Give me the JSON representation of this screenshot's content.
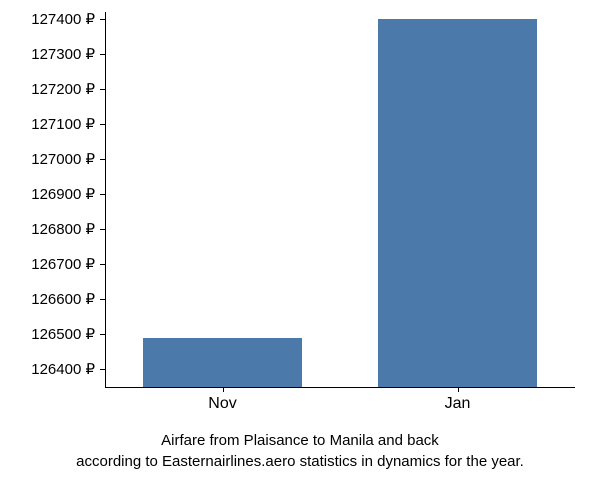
{
  "chart": {
    "type": "bar",
    "currency_symbol": "₽",
    "categories": [
      "Nov",
      "Jan"
    ],
    "values": [
      126490,
      127400
    ],
    "bar_color": "#4a79aa",
    "background_color": "#ffffff",
    "axis_color": "#000000",
    "text_color": "#000000",
    "ylim": [
      126350,
      127420
    ],
    "ytick_start": 126400,
    "ytick_end": 127400,
    "ytick_step": 100,
    "bar_width_ratio": 0.68,
    "caption_line1": "Airfare from Plaisance to Manila and back",
    "caption_line2": "according to Easternairlines.aero statistics in dynamics for the year.",
    "label_fontsize": 15,
    "caption_fontsize": 15,
    "y_labels": [
      {
        "value": 127400,
        "text": "127400 ₽"
      },
      {
        "value": 127300,
        "text": "127300 ₽"
      },
      {
        "value": 127200,
        "text": "127200 ₽"
      },
      {
        "value": 127100,
        "text": "127100 ₽"
      },
      {
        "value": 127000,
        "text": "127000 ₽"
      },
      {
        "value": 126900,
        "text": "126900 ₽"
      },
      {
        "value": 126800,
        "text": "126800 ₽"
      },
      {
        "value": 126700,
        "text": "126700 ₽"
      },
      {
        "value": 126600,
        "text": "126600 ₽"
      },
      {
        "value": 126500,
        "text": "126500 ₽"
      },
      {
        "value": 126400,
        "text": "126400 ₽"
      }
    ]
  }
}
